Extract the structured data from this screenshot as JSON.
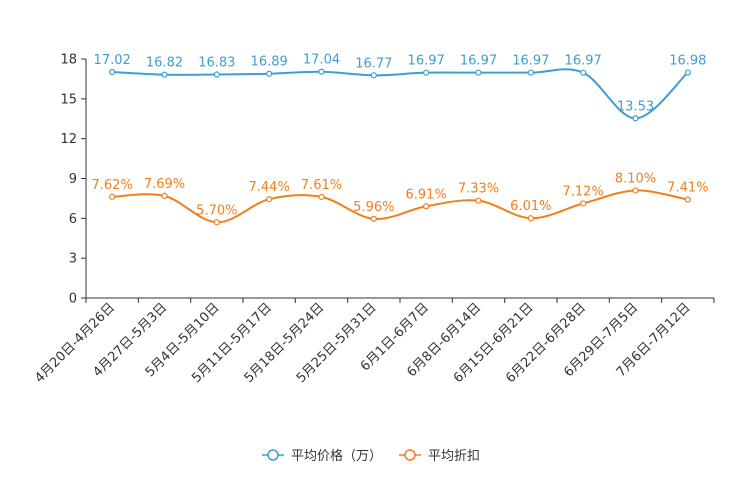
{
  "chart_data": {
    "type": "line",
    "categories": [
      "4月20日-4月26日",
      "4月27日-5月3日",
      "5月4日-5月10日",
      "5月11日-5月17日",
      "5月18日-5月24日",
      "5月25日-5月31日",
      "6月1日-6月7日",
      "6月8日-6月14日",
      "6月15日-6月21日",
      "6月22日-6月28日",
      "6月29日-7月5日",
      "7月6日-7月12日"
    ],
    "ylim": [
      0,
      18
    ],
    "yticks": [
      "0",
      "3",
      "6",
      "9",
      "12",
      "15",
      "18"
    ],
    "series": [
      {
        "name": "平均价格（万）",
        "color": "#3d9fd2",
        "values": [
          17.02,
          16.82,
          16.83,
          16.89,
          17.04,
          16.77,
          16.97,
          16.97,
          16.97,
          16.97,
          13.53,
          16.98
        ],
        "labels": [
          "17.02",
          "16.82",
          "16.83",
          "16.89",
          "17.04",
          "16.77",
          "16.97",
          "16.97",
          "16.97",
          "16.97",
          "13.53",
          "16.98"
        ]
      },
      {
        "name": "平均折扣",
        "color": "#f07f1e",
        "values": [
          7.62,
          7.69,
          5.7,
          7.44,
          7.61,
          5.96,
          6.91,
          7.33,
          6.01,
          7.12,
          8.1,
          7.41
        ],
        "labels": [
          "7.62%",
          "7.69%",
          "5.70%",
          "7.44%",
          "7.61%",
          "5.96%",
          "6.91%",
          "7.33%",
          "6.01%",
          "7.12%",
          "8.10%",
          "7.41%"
        ]
      }
    ],
    "legend": {
      "position": "bottom-center"
    }
  }
}
